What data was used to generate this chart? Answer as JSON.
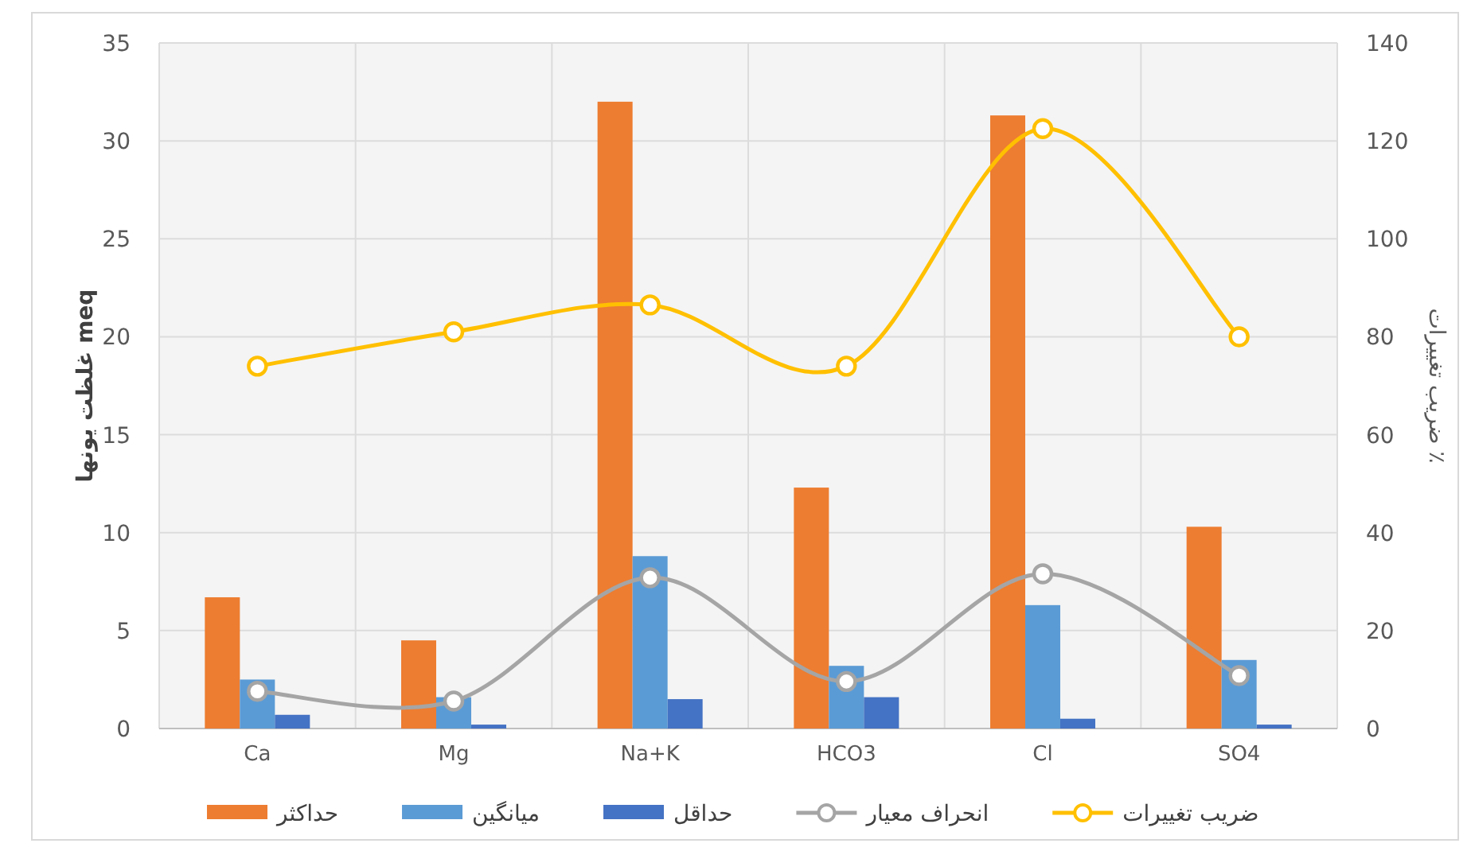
{
  "chart_data": {
    "type": "bar",
    "categories": [
      "Ca",
      "Mg",
      "Na+K",
      "HCO3",
      "Cl",
      "SO4"
    ],
    "ylabel": "غلظت یونها meq",
    "y2label": "ضریب تغییرات ٪",
    "ylim": [
      0,
      35
    ],
    "yticks": [
      0,
      5,
      10,
      15,
      20,
      25,
      30,
      35
    ],
    "y2lim": [
      0,
      140
    ],
    "y2ticks": [
      0,
      20,
      40,
      60,
      80,
      100,
      120,
      140
    ],
    "grid": true,
    "legend": "bottom",
    "series": [
      {
        "name": "حداکثر",
        "color": "#ed7d31",
        "values": [
          6.7,
          4.5,
          32,
          12.3,
          31.3,
          10.3
        ]
      },
      {
        "name": "میانگین",
        "color": "#5b9bd5",
        "values": [
          2.5,
          1.6,
          8.8,
          3.2,
          6.3,
          3.5
        ]
      },
      {
        "name": "حداقل",
        "color": "#4472c4",
        "values": [
          0.7,
          0.2,
          1.5,
          1.6,
          0.5,
          0.2
        ]
      },
      {
        "name": "انحراف معیار",
        "color": "#a5a5a5",
        "type": "line",
        "marker": "circle",
        "values": [
          1.9,
          1.4,
          7.7,
          2.4,
          7.9,
          2.7
        ]
      },
      {
        "name": "ضریب تغییرات",
        "color": "#ffc000",
        "type": "line",
        "marker": "circle",
        "axis": "y2",
        "values": [
          74,
          81,
          86.5,
          74,
          122.5,
          80
        ]
      }
    ]
  }
}
